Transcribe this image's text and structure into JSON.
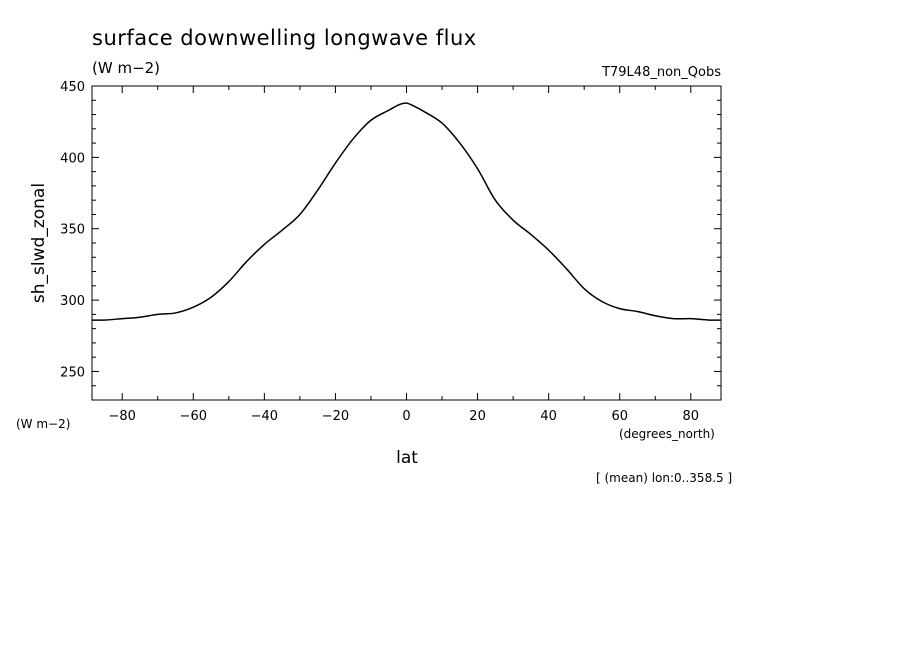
{
  "title": "surface downwelling longwave flux",
  "units": "(W m−2)",
  "run_name": "T79L48_non_Qobs",
  "y_units_bottom": "(W m−2)",
  "x_units": "(degrees_north)",
  "averaging_note": "[ (mean) lon:0..358.5 ]",
  "chart_data": {
    "type": "line",
    "xlabel": "lat",
    "ylabel": "sh_slwd_zonal",
    "xlim": [
      -88.5,
      88.5
    ],
    "ylim": [
      230,
      450
    ],
    "x_ticks": [
      -80,
      -60,
      -40,
      -20,
      0,
      20,
      40,
      60,
      80
    ],
    "x_tick_labels": [
      "−80",
      "−60",
      "−40",
      "−20",
      "0",
      "20",
      "40",
      "60",
      "80"
    ],
    "y_ticks": [
      250,
      300,
      350,
      400,
      450
    ],
    "y_tick_labels": [
      "250",
      "300",
      "350",
      "400",
      "450"
    ],
    "grid": false,
    "series": [
      {
        "x": [
          -88.5,
          -85,
          -80,
          -75,
          -70,
          -65,
          -60,
          -55,
          -50,
          -45,
          -40,
          -35,
          -30,
          -25,
          -20,
          -15,
          -10,
          -5,
          -2,
          0,
          2,
          5,
          10,
          15,
          20,
          25,
          30,
          35,
          40,
          45,
          50,
          55,
          60,
          65,
          70,
          75,
          80,
          85,
          88.5
        ],
        "y": [
          286,
          286,
          287,
          288,
          290,
          291,
          295,
          302,
          313,
          327,
          339,
          349,
          360,
          377,
          396,
          413,
          426,
          433,
          437,
          438,
          436,
          432,
          424,
          410,
          392,
          370,
          356,
          346,
          335,
          322,
          308,
          299,
          294,
          292,
          289,
          287,
          287,
          286,
          286
        ]
      }
    ]
  }
}
